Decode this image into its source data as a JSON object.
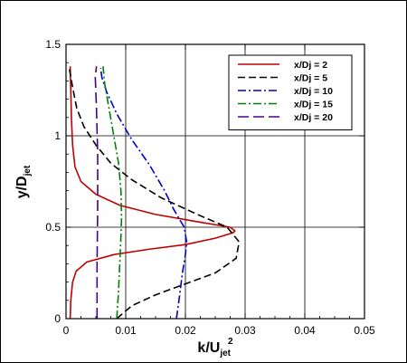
{
  "chart_data": {
    "type": "line",
    "xlabel": {
      "main": "k/U",
      "sub": "jet",
      "sup": "2"
    },
    "ylabel": {
      "main": "y/D",
      "sub": "jet"
    },
    "xlim": [
      0,
      0.05
    ],
    "ylim": [
      0,
      1.5
    ],
    "xticks": [
      "0",
      "0.01",
      "0.02",
      "0.03",
      "0.04",
      "0.05"
    ],
    "yticks": [
      "0",
      "0.5",
      "1",
      "1.5"
    ],
    "grid": true,
    "legend_position": "top-right",
    "series": [
      {
        "name": "x/Dj = 2",
        "color": "#c00000",
        "dash": "solid",
        "points": [
          [
            0.0007,
            0.0
          ],
          [
            0.0008,
            0.1
          ],
          [
            0.0011,
            0.2
          ],
          [
            0.0017,
            0.26
          ],
          [
            0.0035,
            0.31
          ],
          [
            0.008,
            0.35
          ],
          [
            0.014,
            0.38
          ],
          [
            0.02,
            0.405
          ],
          [
            0.025,
            0.44
          ],
          [
            0.028,
            0.47
          ],
          [
            0.0283,
            0.48
          ],
          [
            0.0275,
            0.5
          ],
          [
            0.022,
            0.53
          ],
          [
            0.015,
            0.57
          ],
          [
            0.009,
            0.62
          ],
          [
            0.005,
            0.68
          ],
          [
            0.0025,
            0.75
          ],
          [
            0.0015,
            0.83
          ],
          [
            0.0011,
            0.95
          ],
          [
            0.0009,
            1.1
          ],
          [
            0.0008,
            1.25
          ],
          [
            0.0007,
            1.38
          ]
        ]
      },
      {
        "name": "x/Dj = 5",
        "color": "#000000",
        "dash": "8,4",
        "points": [
          [
            0.0085,
            0.0
          ],
          [
            0.011,
            0.07
          ],
          [
            0.015,
            0.13
          ],
          [
            0.02,
            0.19
          ],
          [
            0.025,
            0.25
          ],
          [
            0.0285,
            0.33
          ],
          [
            0.029,
            0.42
          ],
          [
            0.027,
            0.5
          ],
          [
            0.022,
            0.57
          ],
          [
            0.016,
            0.66
          ],
          [
            0.011,
            0.76
          ],
          [
            0.0075,
            0.85
          ],
          [
            0.005,
            0.95
          ],
          [
            0.003,
            1.05
          ],
          [
            0.0018,
            1.15
          ],
          [
            0.0012,
            1.25
          ],
          [
            0.0008,
            1.32
          ],
          [
            0.0005,
            1.38
          ]
        ]
      },
      {
        "name": "x/Dj = 10",
        "color": "#0000cc",
        "dash": "9,3,2,3",
        "points": [
          [
            0.0185,
            0.0
          ],
          [
            0.019,
            0.12
          ],
          [
            0.0195,
            0.25
          ],
          [
            0.02,
            0.35
          ],
          [
            0.0202,
            0.42
          ],
          [
            0.0198,
            0.5
          ],
          [
            0.018,
            0.6
          ],
          [
            0.0165,
            0.7
          ],
          [
            0.014,
            0.84
          ],
          [
            0.011,
            0.98
          ],
          [
            0.0085,
            1.12
          ],
          [
            0.0068,
            1.24
          ],
          [
            0.006,
            1.32
          ],
          [
            0.0058,
            1.37
          ]
        ]
      },
      {
        "name": "x/Dj = 15",
        "color": "#008000",
        "dash": "9,3,2,3",
        "points": [
          [
            0.0085,
            0.0
          ],
          [
            0.0088,
            0.15
          ],
          [
            0.009,
            0.3
          ],
          [
            0.0092,
            0.45
          ],
          [
            0.0093,
            0.55
          ],
          [
            0.0092,
            0.7
          ],
          [
            0.0088,
            0.85
          ],
          [
            0.008,
            1.0
          ],
          [
            0.0072,
            1.15
          ],
          [
            0.0065,
            1.28
          ],
          [
            0.0062,
            1.38
          ]
        ]
      },
      {
        "name": "x/Dj = 20",
        "color": "#4b0082",
        "dash": "12,5",
        "points": [
          [
            0.0052,
            0.0
          ],
          [
            0.0052,
            0.3
          ],
          [
            0.0053,
            0.6
          ],
          [
            0.0053,
            0.9
          ],
          [
            0.0051,
            1.15
          ],
          [
            0.0049,
            1.32
          ],
          [
            0.0051,
            1.38
          ]
        ]
      }
    ]
  }
}
